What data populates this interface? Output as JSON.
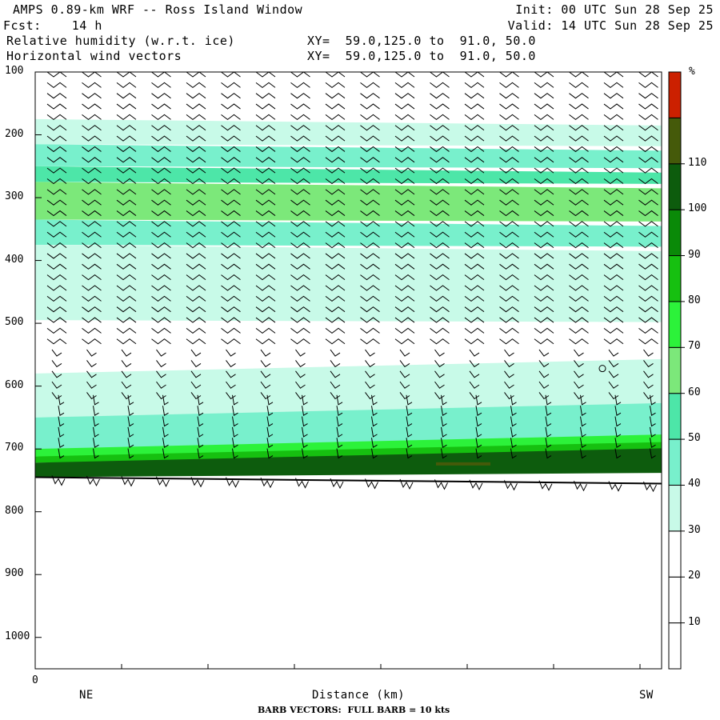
{
  "header": {
    "line1_left": "AMPS 0.89-km WRF -- Ross Island Window",
    "line1_right": "Init: 00 UTC Sun 28 Sep 25",
    "line2_left": "Fcst:    14 h",
    "line2_right": "Valid: 14 UTC Sun 28 Sep 25",
    "line3_left": "Relative humidity (w.r.t. ice)",
    "line3_right": "XY=  59.0,125.0 to  91.0, 50.0",
    "line4_left": "Horizontal wind vectors",
    "line4_right": "XY=  59.0,125.0 to  91.0, 50.0"
  },
  "chart_data": {
    "type": "heatmap",
    "title": "Relative humidity (w.r.t. ice)",
    "subtitle": "Horizontal wind vectors",
    "xlabel": "Distance (km)",
    "ylabel": "",
    "x_start_label": "0",
    "x_left_end_label": "NE",
    "x_right_end_label": "SW",
    "y_ticks": [
      "100",
      "200",
      "300",
      "400",
      "500",
      "600",
      "700",
      "800",
      "900",
      "1000"
    ],
    "y_tick_values": [
      100,
      200,
      300,
      400,
      500,
      600,
      700,
      800,
      900,
      1000
    ],
    "ylim": [
      100,
      1050
    ],
    "y_inverted": true,
    "colorbar": {
      "unit": "%",
      "levels": [
        10,
        20,
        30,
        40,
        50,
        60,
        70,
        80,
        90,
        100,
        110
      ],
      "labels": [
        "10",
        "20",
        "30",
        "40",
        "50",
        "60",
        "70",
        "80",
        "90",
        "100",
        "110"
      ],
      "colors": [
        "#ffffff",
        "#ffffff",
        "#ffffff",
        "#c8fae8",
        "#78f0cc",
        "#4de6a8",
        "#7ce87a",
        "#2cf23a",
        "#16c010",
        "#0a8a08",
        "#0d5c0d",
        "#455a0a",
        "#cc2000"
      ]
    },
    "rh_layers": [
      {
        "top": 175,
        "bottom": 215,
        "rh": 35
      },
      {
        "top": 215,
        "bottom": 250,
        "rh": 45
      },
      {
        "top": 250,
        "bottom": 275,
        "rh": 50
      },
      {
        "top": 275,
        "bottom": 335,
        "rh": 60
      },
      {
        "top": 335,
        "bottom": 375,
        "rh": 45
      },
      {
        "top": 375,
        "bottom": 495,
        "rh": 35
      },
      {
        "top": 580,
        "bottom": 650,
        "rh": 35
      },
      {
        "top": 650,
        "bottom": 700,
        "rh": 45
      },
      {
        "top": 700,
        "bottom": 712,
        "rh": 70
      },
      {
        "top": 712,
        "bottom": 722,
        "rh": 85
      },
      {
        "top": 722,
        "bottom": 745,
        "rh": 105
      }
    ],
    "surface_pressure": 745,
    "max_rh_marker": {
      "pressure": 720,
      "rh": 115
    },
    "wind_barbs": {
      "columns": 18,
      "full_barb_kts": 10
    }
  },
  "footer": {
    "barb_note": "BARB VECTORS:  FULL BARB = 10 kts"
  }
}
